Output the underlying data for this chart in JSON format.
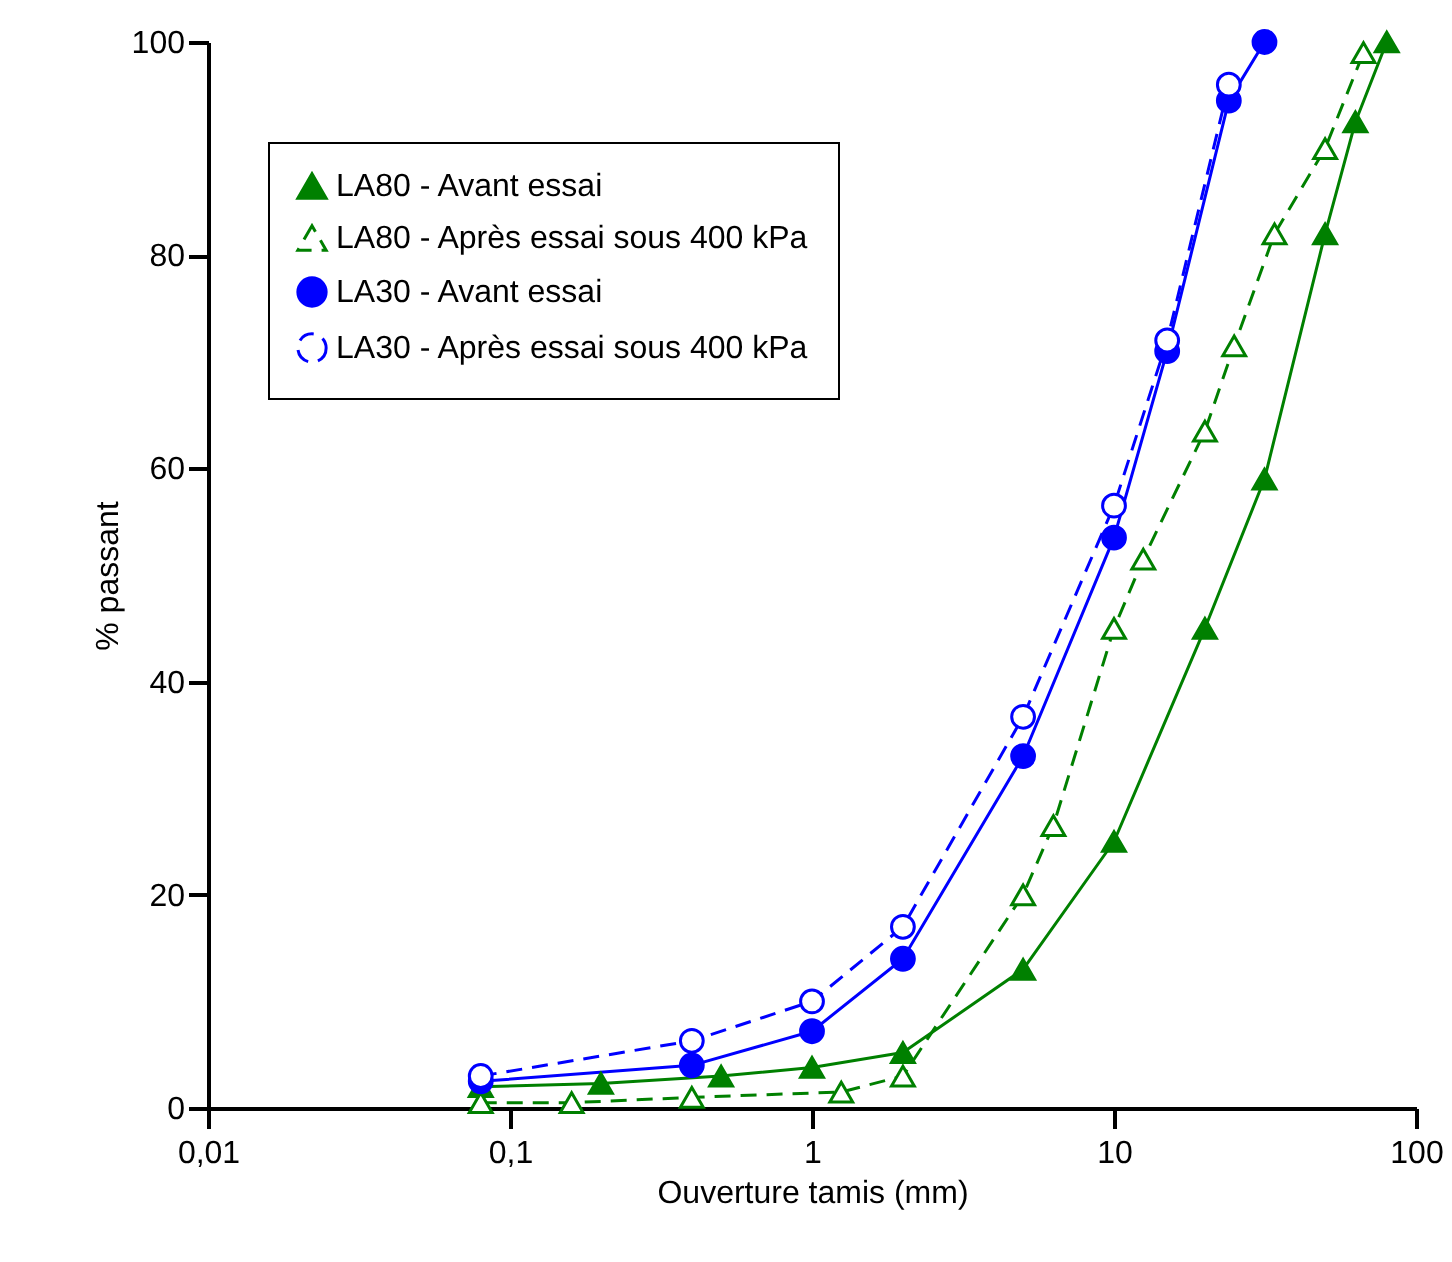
{
  "chart_data": {
    "type": "line",
    "xlabel": "Ouverture tamis (mm)",
    "ylabel": "% passant",
    "log": "x",
    "xlim": [
      0.01,
      100
    ],
    "ylim": [
      0,
      100
    ],
    "xticks": [
      {
        "value": 0.01,
        "label": "0,01"
      },
      {
        "value": 0.1,
        "label": "0,1"
      },
      1,
      10,
      100
    ],
    "yticks": [
      0,
      20,
      40,
      60,
      80,
      100
    ],
    "grid": false,
    "legend": "top left",
    "series": [
      {
        "name": "LA80 - Avant essai",
        "color": "#008000",
        "marker": "triangle",
        "line_style": "solid",
        "x": [
          0.08,
          0.2,
          0.5,
          1,
          2,
          5,
          10,
          20,
          31.5,
          50,
          63,
          80
        ],
        "values": [
          2,
          2.3,
          3,
          3.8,
          5.2,
          13,
          25,
          45,
          59,
          82,
          92.5,
          100
        ]
      },
      {
        "name": "LA80 - Après essai sous 400 kPa",
        "color": "#008000",
        "marker": "triangle",
        "line_style": "dashed",
        "x": [
          0.08,
          0.16,
          0.4,
          1.25,
          2,
          5,
          6.3,
          10,
          12.5,
          20,
          25,
          34,
          50,
          67
        ],
        "values": [
          0.5,
          0.5,
          1,
          1.5,
          3,
          20,
          26.5,
          45,
          51.5,
          63.5,
          71.5,
          82,
          90,
          99
        ]
      },
      {
        "name": "LA30 - Avant essai",
        "color": "#0000ff",
        "marker": "circle",
        "line_style": "solid",
        "x": [
          0.08,
          0.4,
          1,
          2,
          5,
          10,
          15,
          24,
          31.5
        ],
        "values": [
          2.5,
          4,
          7.2,
          14,
          33,
          53.5,
          71,
          94.5,
          100
        ]
      },
      {
        "name": "LA30 - Après essai sous 400 kPa",
        "color": "#0000ff",
        "marker": "circle",
        "line_style": "dashed",
        "x": [
          0.08,
          0.4,
          1,
          2,
          5,
          10,
          15,
          24
        ],
        "values": [
          3,
          6.3,
          10,
          17,
          36.7,
          56.5,
          72,
          96
        ]
      }
    ]
  }
}
